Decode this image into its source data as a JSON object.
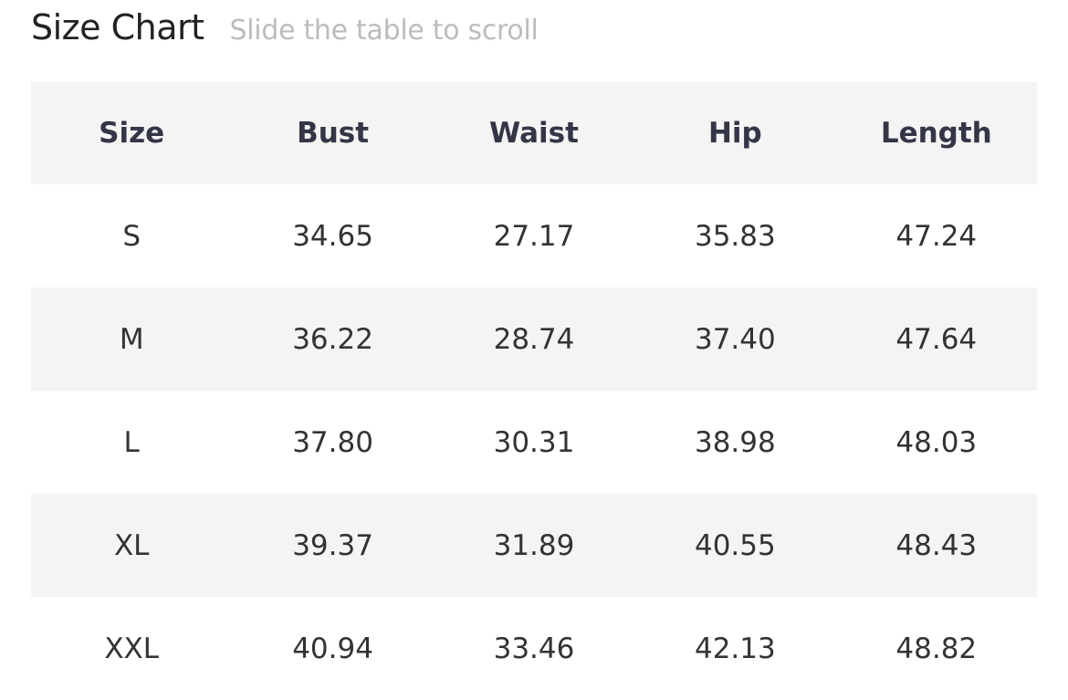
{
  "header": {
    "title": "Size Chart",
    "subtitle": "Slide the table to scroll"
  },
  "table": {
    "columns": [
      "Size",
      "Bust",
      "Waist",
      "Hip",
      "Length"
    ],
    "rows": [
      [
        "S",
        "34.65",
        "27.17",
        "35.83",
        "47.24"
      ],
      [
        "M",
        "36.22",
        "28.74",
        "37.40",
        "47.64"
      ],
      [
        "L",
        "37.80",
        "30.31",
        "38.98",
        "48.03"
      ],
      [
        "XL",
        "39.37",
        "31.89",
        "40.55",
        "48.43"
      ],
      [
        "XXL",
        "40.94",
        "33.46",
        "42.13",
        "48.82"
      ]
    ]
  }
}
